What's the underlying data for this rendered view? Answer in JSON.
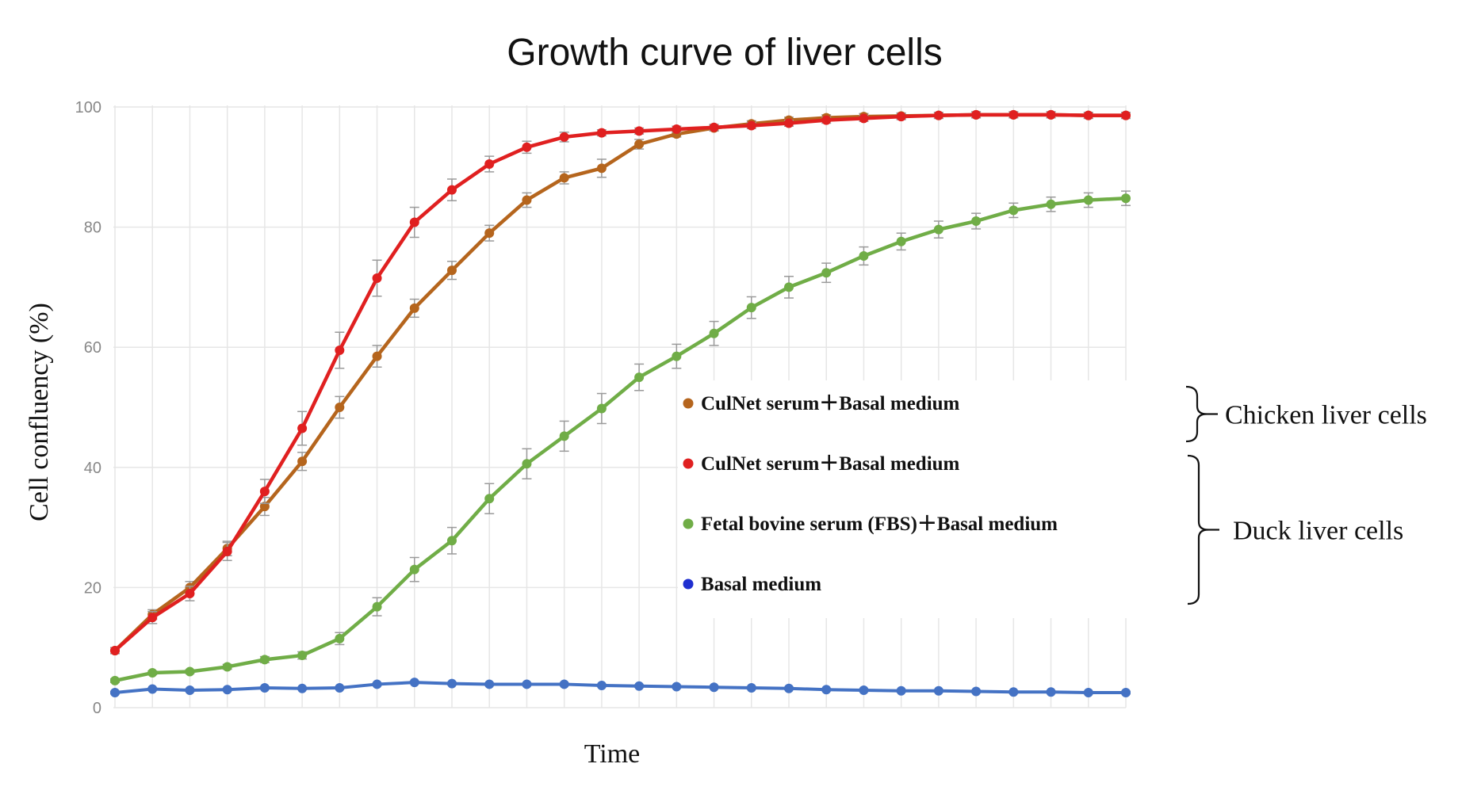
{
  "chart_data": {
    "type": "line",
    "title": "Growth curve of liver cells",
    "xlabel": "Time",
    "ylabel": "Cell confluency (%)",
    "ylim": [
      0,
      100
    ],
    "yticks": [
      "0",
      "20",
      "40",
      "60",
      "80",
      "100"
    ],
    "x": [
      1,
      2,
      3,
      4,
      5,
      6,
      7,
      8,
      9,
      10,
      11,
      12,
      13,
      14,
      15,
      16,
      17,
      18,
      19,
      20,
      21,
      22,
      23,
      24,
      25,
      26,
      27,
      28
    ],
    "grid": true,
    "legend_position": "center-right",
    "series": [
      {
        "name": "CulNet serum＋Basal medium",
        "group": "Chicken liver cells",
        "color": "#b5651d",
        "values": [
          9.5,
          15.5,
          20,
          26.5,
          33.5,
          41,
          50,
          58.5,
          66.5,
          72.8,
          79,
          84.5,
          88.2,
          89.8,
          93.8,
          95.5,
          96.5,
          97.2,
          97.8,
          98.2,
          98.4,
          98.5,
          98.6,
          98.7,
          98.7,
          98.7,
          98.6,
          98.6
        ],
        "errors": [
          0.5,
          0.8,
          1.0,
          1.2,
          1.5,
          1.5,
          1.8,
          1.8,
          1.5,
          1.5,
          1.3,
          1.2,
          1.0,
          1.5,
          0.8,
          0.5,
          0.5,
          0.5,
          0.5,
          0.5,
          0.5,
          0.5,
          0.5,
          0.5,
          0.5,
          0.5,
          0.5,
          0.5
        ]
      },
      {
        "name": "CulNet serum＋Basal medium",
        "group": "Duck liver cells",
        "color": "#e02020",
        "values": [
          9.5,
          15,
          19,
          26,
          36,
          46.5,
          59.5,
          71.5,
          80.8,
          86.2,
          90.5,
          93.3,
          95,
          95.7,
          96,
          96.3,
          96.6,
          96.9,
          97.3,
          97.8,
          98.1,
          98.4,
          98.6,
          98.7,
          98.7,
          98.7,
          98.6,
          98.6
        ],
        "errors": [
          0.5,
          1.0,
          1.2,
          1.5,
          2.0,
          2.8,
          3.0,
          3.0,
          2.5,
          1.8,
          1.3,
          1.0,
          0.8,
          0.5,
          0.5,
          0.5,
          0.5,
          0.5,
          0.5,
          0.5,
          0.5,
          0.5,
          0.5,
          0.5,
          0.5,
          0.5,
          0.5,
          0.5
        ]
      },
      {
        "name": "Fetal bovine serum (FBS)＋Basal medium",
        "group": "Duck liver cells",
        "color": "#70ad47",
        "values": [
          4.5,
          5.8,
          6,
          6.8,
          8,
          8.7,
          11.5,
          16.8,
          23,
          27.8,
          34.8,
          40.6,
          45.2,
          49.8,
          55,
          58.5,
          62.3,
          66.6,
          70,
          72.4,
          75.2,
          77.6,
          79.6,
          81,
          82.8,
          83.8,
          84.5,
          84.8
        ],
        "errors": [
          0.3,
          0.3,
          0.3,
          0.4,
          0.5,
          0.6,
          1.0,
          1.5,
          2.0,
          2.2,
          2.5,
          2.5,
          2.5,
          2.5,
          2.2,
          2.0,
          2.0,
          1.8,
          1.8,
          1.6,
          1.5,
          1.4,
          1.4,
          1.3,
          1.2,
          1.2,
          1.2,
          1.2
        ]
      },
      {
        "name": "Basal medium",
        "group": "Duck liver cells",
        "color": "#4472c4",
        "legend_color": "#1f2fd0",
        "values": [
          2.5,
          3.1,
          2.9,
          3.0,
          3.3,
          3.2,
          3.3,
          3.9,
          4.2,
          4.0,
          3.9,
          3.9,
          3.9,
          3.7,
          3.6,
          3.5,
          3.4,
          3.3,
          3.2,
          3.0,
          2.9,
          2.8,
          2.8,
          2.7,
          2.6,
          2.6,
          2.5,
          2.5
        ],
        "errors": [
          0.2,
          0.2,
          0.2,
          0.2,
          0.2,
          0.2,
          0.2,
          0.2,
          0.2,
          0.2,
          0.2,
          0.2,
          0.2,
          0.2,
          0.2,
          0.2,
          0.2,
          0.2,
          0.2,
          0.2,
          0.2,
          0.2,
          0.2,
          0.2,
          0.2,
          0.2,
          0.2,
          0.2
        ]
      }
    ],
    "groups": [
      {
        "label": "Chicken liver cells",
        "series_index": [
          0
        ]
      },
      {
        "label": "Duck liver cells",
        "series_index": [
          1,
          2,
          3
        ]
      }
    ]
  }
}
